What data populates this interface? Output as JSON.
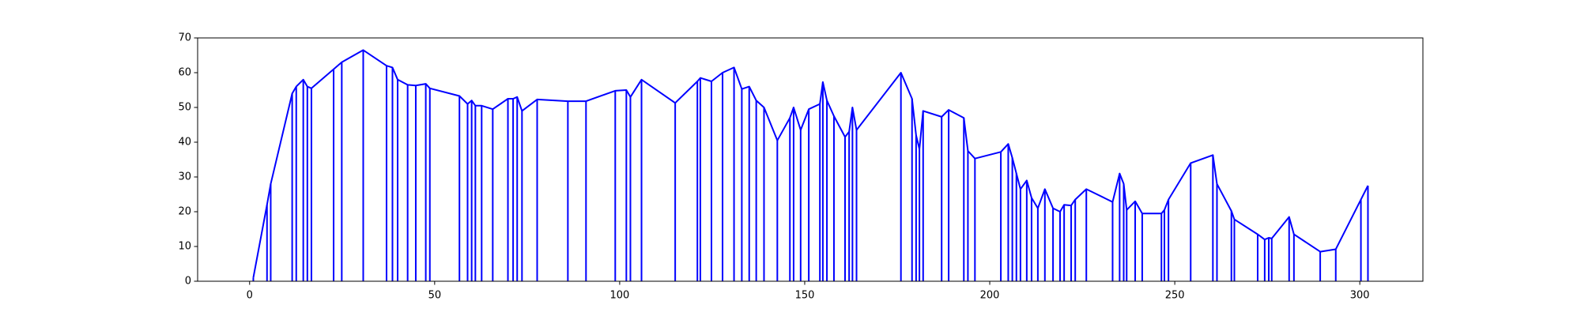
{
  "chart_data": {
    "type": "line",
    "color": "#0000ff",
    "droplines": true,
    "x": [
      1,
      4.7,
      5.7,
      11.5,
      12.6,
      14.5,
      15.6,
      16.7,
      22.7,
      24.9,
      30.7,
      37,
      38.6,
      40,
      42.7,
      44.9,
      47.6,
      48.7,
      56.7,
      58.9,
      60,
      61,
      62.7,
      65.7,
      69.8,
      71.2,
      72.3,
      73.6,
      77.7,
      86,
      90.9,
      98.8,
      101.8,
      102.9,
      105.9,
      115,
      121,
      121.8,
      124.8,
      127.8,
      130.9,
      133,
      135,
      136.9,
      139,
      142.6,
      146,
      147,
      148.9,
      151.1,
      154.1,
      154.9,
      156,
      157.9,
      160.9,
      162,
      162.9,
      164,
      176,
      179,
      180.1,
      181,
      182,
      187,
      188.9,
      193,
      194.1,
      196,
      203,
      205,
      206.1,
      207.2,
      208.3,
      210,
      211.3,
      213,
      214.9,
      217.1,
      219,
      220.1,
      222,
      223.1,
      226.1,
      233.2,
      235.1,
      236.2,
      237,
      239.3,
      241.2,
      246.4,
      247.2,
      248.3,
      254.3,
      260.3,
      261.4,
      265.3,
      266.1,
      272.4,
      274.3,
      275.4,
      276.2,
      280.9,
      282.2,
      289.3,
      293.5,
      300.3,
      302.2
    ],
    "values": [
      1,
      22,
      28,
      54,
      56,
      58,
      56,
      55.5,
      61,
      63,
      66.5,
      62,
      61.5,
      58,
      56.5,
      56.3,
      56.8,
      55.5,
      53.3,
      51,
      52,
      50.5,
      50.5,
      49.5,
      52.5,
      52.5,
      53,
      49,
      52.3,
      51.8,
      51.8,
      54.8,
      55,
      53,
      58,
      51.3,
      57.5,
      58.5,
      57.5,
      60,
      61.5,
      55.3,
      56,
      52,
      50,
      40.5,
      47,
      50,
      43.5,
      49.5,
      51,
      57.3,
      52,
      47.5,
      41.5,
      43,
      50,
      43.5,
      60,
      52.5,
      42,
      38,
      49,
      47.3,
      49.3,
      47,
      37.5,
      35.3,
      37.2,
      39.5,
      35.5,
      31,
      26.5,
      29,
      24,
      21,
      26.5,
      21,
      20,
      22,
      21.8,
      23.5,
      26.5,
      22.8,
      31,
      28,
      20.5,
      23,
      19.5,
      19.5,
      20.5,
      23.5,
      34,
      36.3,
      28,
      20.2,
      17.8,
      13.5,
      12,
      12.5,
      12.3,
      18.5,
      13.5,
      8.5,
      9.2,
      23.5,
      27.5
    ],
    "xlim": [
      -14.05,
      317.05
    ],
    "xticks": [
      0,
      50,
      100,
      150,
      200,
      250,
      300
    ],
    "ylim": [
      0,
      70
    ],
    "yticks": [
      0,
      10,
      20,
      30,
      40,
      50,
      60,
      70
    ]
  }
}
